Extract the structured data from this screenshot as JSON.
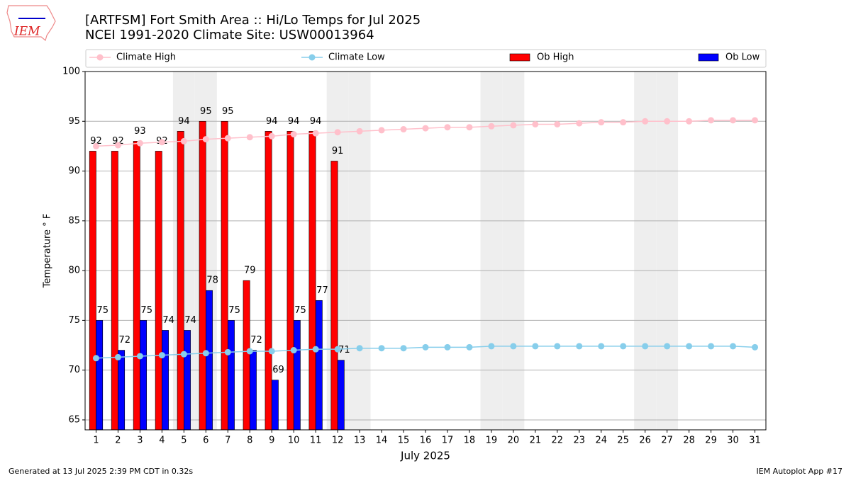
{
  "chart_data": {
    "type": "bar",
    "logo": "IEM",
    "title": "[ARTFSM] Fort Smith Area :: Hi/Lo Temps for Jul 2025",
    "subtitle": "NCEI 1991-2020 Climate Site: USW00013964",
    "xlabel": "July 2025",
    "ylabel": "Temperature ° F",
    "footer_left": "Generated at 13 Jul 2025 2:39 PM CDT in 0.32s",
    "footer_right": "IEM Autoplot App #17",
    "x": [
      1,
      2,
      3,
      4,
      5,
      6,
      7,
      8,
      9,
      10,
      11,
      12,
      13,
      14,
      15,
      16,
      17,
      18,
      19,
      20,
      21,
      22,
      23,
      24,
      25,
      26,
      27,
      28,
      29,
      30,
      31
    ],
    "xlim": [
      0.5,
      31.5
    ],
    "xticks": [
      1,
      2,
      3,
      4,
      5,
      6,
      7,
      8,
      9,
      10,
      11,
      12,
      13,
      14,
      15,
      16,
      17,
      18,
      19,
      20,
      21,
      22,
      23,
      24,
      25,
      26,
      27,
      28,
      29,
      30,
      31
    ],
    "ylim": [
      64,
      100
    ],
    "yticks": [
      65,
      70,
      75,
      80,
      85,
      90,
      95,
      100
    ],
    "grid": true,
    "shaded_days": [
      5,
      6,
      12,
      13,
      19,
      20,
      26,
      27
    ],
    "series": [
      {
        "name": "Climate High",
        "type": "line",
        "color": "#ffc0cb",
        "values": [
          92.5,
          92.6,
          92.8,
          92.9,
          93.0,
          93.2,
          93.3,
          93.4,
          93.5,
          93.7,
          93.8,
          93.9,
          94.0,
          94.1,
          94.2,
          94.3,
          94.4,
          94.4,
          94.5,
          94.6,
          94.7,
          94.7,
          94.8,
          94.9,
          94.9,
          95.0,
          95.0,
          95.0,
          95.1,
          95.1,
          95.1
        ]
      },
      {
        "name": "Climate Low",
        "type": "line",
        "color": "#87ceeb",
        "values": [
          71.2,
          71.3,
          71.4,
          71.5,
          71.6,
          71.7,
          71.8,
          71.9,
          71.9,
          72.0,
          72.1,
          72.1,
          72.2,
          72.2,
          72.2,
          72.3,
          72.3,
          72.3,
          72.4,
          72.4,
          72.4,
          72.4,
          72.4,
          72.4,
          72.4,
          72.4,
          72.4,
          72.4,
          72.4,
          72.4,
          72.3
        ]
      },
      {
        "name": "Ob High",
        "type": "bar",
        "color": "#ff0000",
        "values": [
          92,
          92,
          93,
          92,
          94,
          95,
          95,
          79,
          94,
          94,
          94,
          91,
          null,
          null,
          null,
          null,
          null,
          null,
          null,
          null,
          null,
          null,
          null,
          null,
          null,
          null,
          null,
          null,
          null,
          null,
          null
        ]
      },
      {
        "name": "Ob Low",
        "type": "bar",
        "color": "#0000ff",
        "values": [
          75,
          72,
          75,
          74,
          74,
          78,
          75,
          72,
          69,
          75,
          77,
          71,
          null,
          null,
          null,
          null,
          null,
          null,
          null,
          null,
          null,
          null,
          null,
          null,
          null,
          null,
          null,
          null,
          null,
          null,
          null
        ]
      }
    ]
  }
}
